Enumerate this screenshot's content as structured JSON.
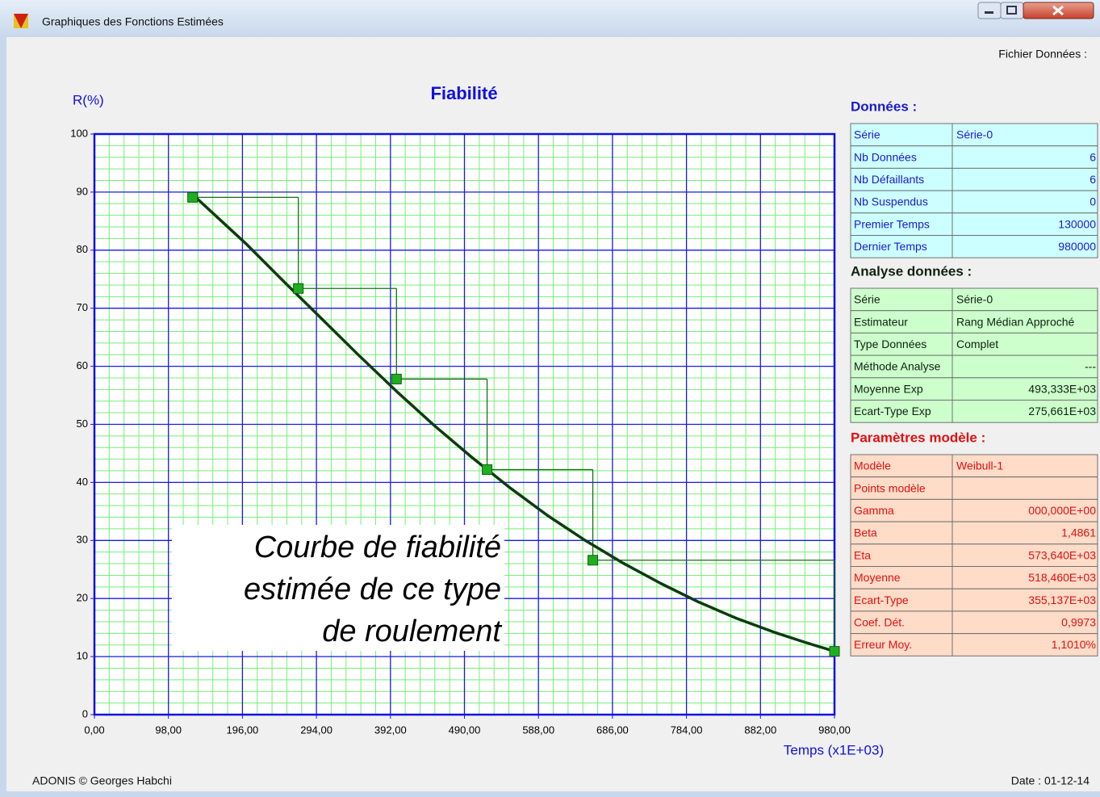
{
  "window": {
    "title": "Graphiques des Fonctions Estimées"
  },
  "header": {
    "file_label": "Fichier Données :"
  },
  "chart_data": {
    "type": "line",
    "title": "Fiabilité",
    "ylabel": "R(%)",
    "xlabel": "Temps (x1E+03)",
    "xlim": [
      0,
      980
    ],
    "ylim": [
      0,
      100
    ],
    "xticks": [
      {
        "value": 0,
        "label": "0,00"
      },
      {
        "value": 98,
        "label": "98,00"
      },
      {
        "value": 196,
        "label": "196,00"
      },
      {
        "value": 294,
        "label": "294,00"
      },
      {
        "value": 392,
        "label": "392,00"
      },
      {
        "value": 490,
        "label": "490,00"
      },
      {
        "value": 588,
        "label": "588,00"
      },
      {
        "value": 686,
        "label": "686,00"
      },
      {
        "value": 784,
        "label": "784,00"
      },
      {
        "value": 882,
        "label": "882,00"
      },
      {
        "value": 980,
        "label": "980,00"
      }
    ],
    "yticks": [
      0,
      10,
      20,
      30,
      40,
      50,
      60,
      70,
      80,
      90,
      100
    ],
    "grid": true,
    "minor_grid_divisions": 5,
    "series": [
      {
        "color": "#1fae1f",
        "marker": "square",
        "steps": true,
        "x": [
          130,
          270,
          400,
          520,
          660,
          980
        ],
        "values": [
          89.1,
          73.4,
          57.8,
          42.2,
          26.6,
          10.9
        ]
      },
      {
        "color": "#0b3d0b",
        "marker": "none",
        "steps": false,
        "x": [
          130,
          200,
          250,
          300,
          350,
          400,
          450,
          500,
          550,
          600,
          650,
          700,
          750,
          800,
          850,
          900,
          940,
          980
        ],
        "values": [
          89.6,
          81.2,
          74.7,
          68.3,
          61.9,
          55.7,
          49.8,
          44.3,
          39.1,
          34.3,
          30.0,
          26.1,
          22.6,
          19.4,
          16.6,
          14.2,
          12.5,
          10.9
        ]
      }
    ],
    "annotations": [
      "Courbe de fiabilité",
      "estimée de ce type",
      "de roulement"
    ]
  },
  "panels": [
    {
      "heading": "Données :",
      "rows": [
        [
          "Série",
          "Série-0"
        ],
        [
          "Nb Données",
          "6"
        ],
        [
          "Nb Défaillants",
          "6"
        ],
        [
          "Nb Suspendus",
          "0"
        ],
        [
          "Premier Temps",
          "130000"
        ],
        [
          "Dernier Temps",
          "980000"
        ]
      ]
    },
    {
      "heading": "Analyse données :",
      "rows": [
        [
          "Série",
          "Série-0"
        ],
        [
          "Estimateur",
          "Rang Médian Approché"
        ],
        [
          "Type Données",
          "Complet"
        ],
        [
          "Méthode Analyse",
          "---"
        ],
        [
          "Moyenne Exp",
          "493,333E+03"
        ],
        [
          "Ecart-Type Exp",
          "275,661E+03"
        ]
      ]
    },
    {
      "heading": "Paramètres modèle :",
      "rows": [
        [
          "Modèle",
          "Weibull-1"
        ],
        [
          "Points modèle",
          ""
        ],
        [
          "Gamma",
          "000,000E+00"
        ],
        [
          "Beta",
          "1,4861"
        ],
        [
          "Eta",
          "573,640E+03"
        ],
        [
          "Moyenne",
          "518,460E+03"
        ],
        [
          "Ecart-Type",
          "355,137E+03"
        ],
        [
          "Coef. Dét.",
          "0,9973"
        ],
        [
          "Erreur Moy.",
          "1,1010%"
        ]
      ]
    }
  ],
  "footer": {
    "copyright": "ADONIS © Georges Habchi",
    "date": "Date : 01-12-14"
  }
}
